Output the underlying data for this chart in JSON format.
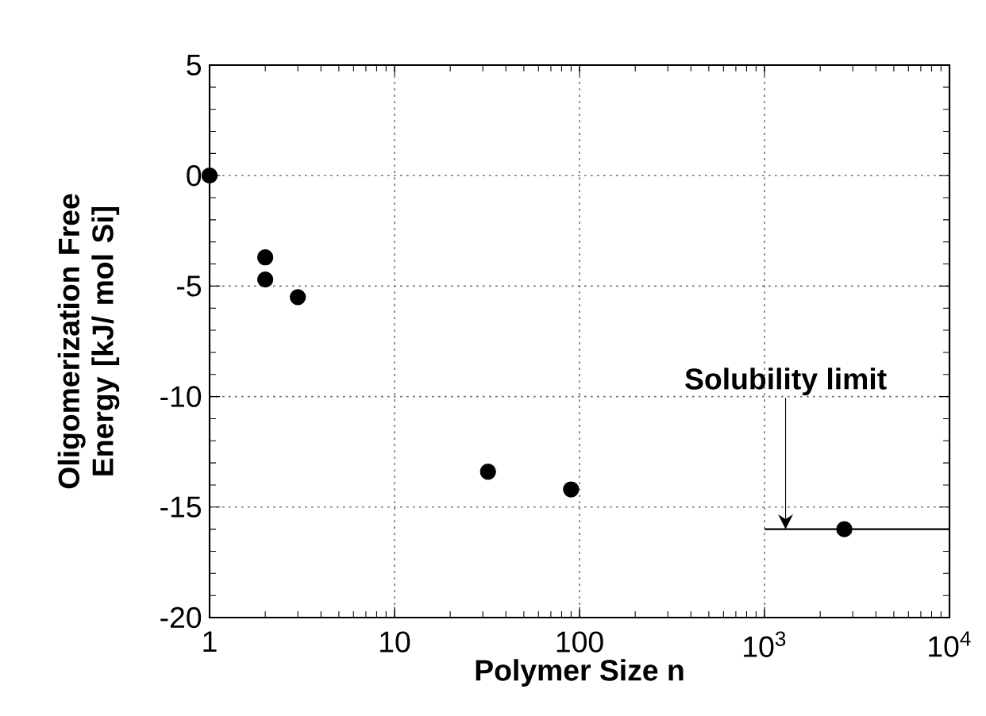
{
  "chart_data": {
    "type": "scatter",
    "xlabel": "Polymer Size  n",
    "ylabel": "Oligomerization Free Energy [kJ/ mol Si]",
    "log": "x",
    "grid": true,
    "marker": "circle",
    "xlim": [
      1,
      10000
    ],
    "ylim": [
      -20,
      5
    ],
    "xticks": [
      1,
      10,
      100,
      {
        "value": 1000,
        "label": "10$^{3}$"
      },
      {
        "value": 10000,
        "label": "10$^{4}$"
      }
    ],
    "yticks": [
      -20,
      -15,
      -10,
      -5,
      0,
      5
    ],
    "series": [
      {
        "color": "#000000",
        "x": [
          1,
          2,
          2,
          3,
          32,
          90,
          2700
        ],
        "values": [
          0,
          -3.7,
          -4.7,
          -5.5,
          -13.4,
          -14.2,
          -16
        ]
      },
      {
        "type": "line",
        "color": "#000000",
        "marker": "none",
        "x": [
          1000,
          10000
        ],
        "values": [
          -16,
          -16
        ]
      }
    ],
    "annotations": [
      {
        "text": "Solubility  limit",
        "x": 1300,
        "y": -16
      }
    ]
  }
}
